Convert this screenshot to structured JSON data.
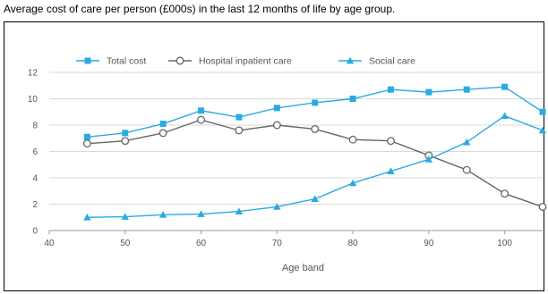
{
  "caption": "Average cost of care per person (£000s) in the last 12 months of life by age group.",
  "chart_data": {
    "type": "line",
    "title": "",
    "xlabel": "Age band",
    "ylabel": "",
    "xlim": [
      40,
      105
    ],
    "ylim": [
      0,
      12
    ],
    "x_ticks": [
      40,
      50,
      60,
      70,
      80,
      90,
      100
    ],
    "y_ticks": [
      0,
      2,
      4,
      6,
      8,
      10,
      12
    ],
    "grid": "horizontal",
    "legend_position": "top",
    "x": [
      45,
      50,
      55,
      60,
      65,
      70,
      75,
      80,
      85,
      90,
      95,
      100,
      105
    ],
    "series": [
      {
        "name": "Total cost",
        "marker": "square",
        "color": "#29abe2",
        "values": [
          7.1,
          7.4,
          8.1,
          9.1,
          8.6,
          9.3,
          9.7,
          10.0,
          10.7,
          10.5,
          10.7,
          10.9,
          9.0
        ]
      },
      {
        "name": "Hospital inpatient care",
        "marker": "circle-open",
        "color": "#666666",
        "values": [
          6.6,
          6.8,
          7.4,
          8.4,
          7.6,
          8.0,
          7.7,
          6.9,
          6.8,
          5.7,
          4.6,
          2.8,
          1.8
        ]
      },
      {
        "name": "Social care",
        "marker": "triangle",
        "color": "#29abe2",
        "values": [
          1.0,
          1.05,
          1.2,
          1.25,
          1.45,
          1.8,
          2.4,
          3.6,
          4.5,
          5.4,
          6.7,
          8.7,
          7.6
        ]
      }
    ]
  }
}
